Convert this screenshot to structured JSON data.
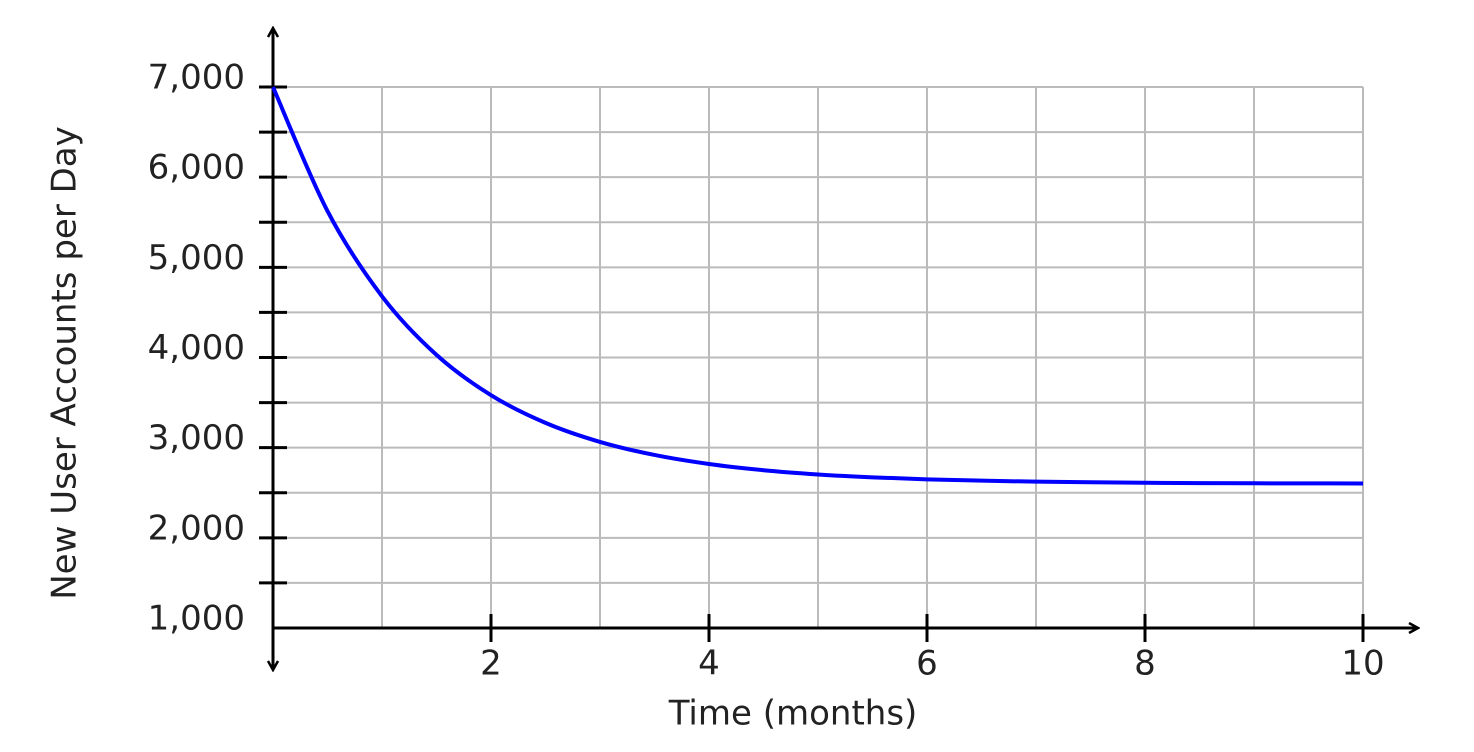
{
  "chart_data": {
    "type": "line",
    "x_label": "Time (months)",
    "y_label": "New User Accounts per Day",
    "x": [
      0,
      0.5,
      1,
      1.5,
      2,
      2.5,
      3,
      3.5,
      4,
      4.5,
      5,
      5.5,
      6,
      6.5,
      7,
      7.5,
      8,
      8.5,
      9,
      9.5,
      10
    ],
    "series": [
      {
        "name": "New User Accounts per Day",
        "color": "#0000ff",
        "values": [
          7000,
          5624,
          4679,
          4029,
          3582,
          3275,
          3064,
          2919,
          2819,
          2750,
          2703,
          2671,
          2649,
          2634,
          2623,
          2616,
          2611,
          2607,
          2605,
          2604,
          2603
        ]
      }
    ],
    "xlim": [
      0,
      10
    ],
    "xticks": [
      2,
      4,
      6,
      8,
      10
    ],
    "ylim": [
      1000,
      7000
    ],
    "yticks": [
      {
        "value": 1000,
        "label": "1,000"
      },
      {
        "value": 2000,
        "label": "2,000"
      },
      {
        "value": 3000,
        "label": "3,000"
      },
      {
        "value": 4000,
        "label": "4,000"
      },
      {
        "value": 5000,
        "label": "5,000"
      },
      {
        "value": 6000,
        "label": "6,000"
      },
      {
        "value": 7000,
        "label": "7,000"
      }
    ],
    "xgrid": [
      1,
      2,
      3,
      4,
      5,
      6,
      7,
      8,
      9,
      10
    ],
    "ygrid": [
      1500,
      2000,
      2500,
      3000,
      3500,
      4000,
      4500,
      5000,
      5500,
      6000,
      6500,
      7000
    ],
    "grid": true
  }
}
